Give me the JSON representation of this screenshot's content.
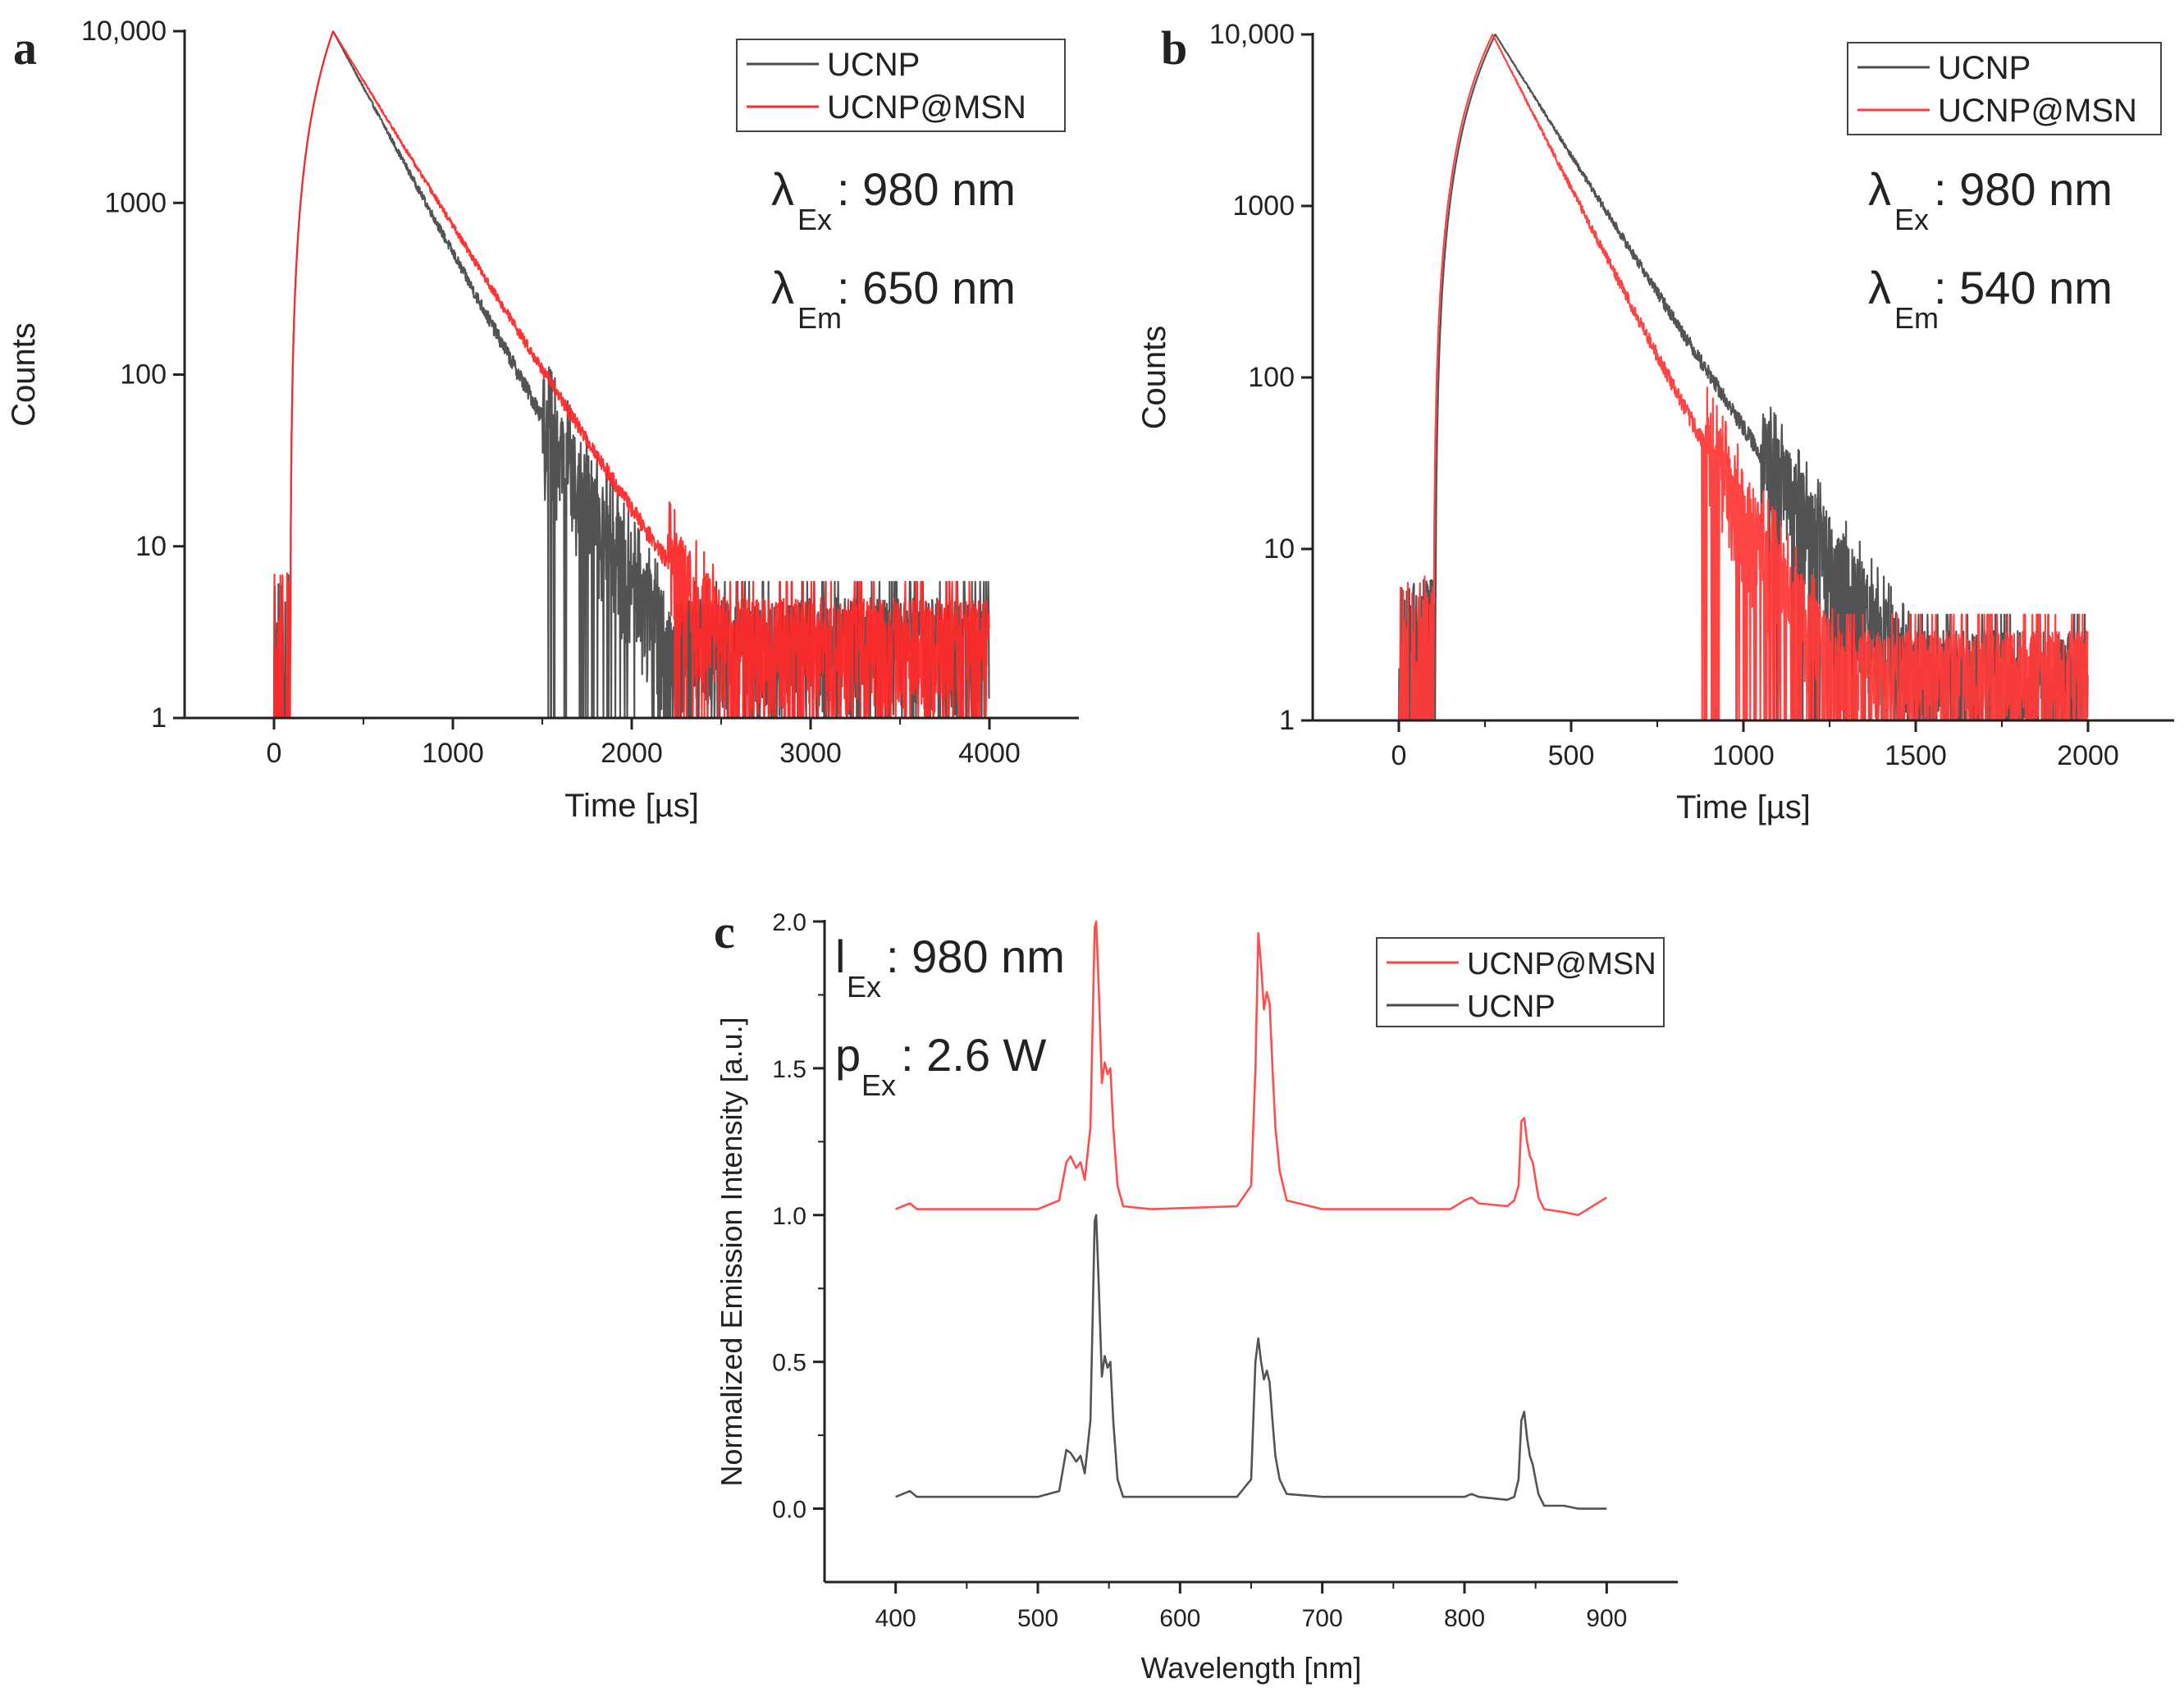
{
  "panels": {
    "a": "a",
    "b": "b",
    "c": "c"
  },
  "chart_data": [
    {
      "id": "a",
      "type": "line",
      "yscale": "log",
      "title": "",
      "xlabel": "Time [µs]",
      "ylabel": "Counts",
      "xlim": [
        -500,
        4500
      ],
      "ylim": [
        1,
        10000
      ],
      "xticks": [
        0,
        1000,
        2000,
        3000,
        4000
      ],
      "xtick_labels": [
        "0",
        "1000",
        "2000",
        "3000",
        "4000"
      ],
      "yticks": [
        1,
        10,
        100,
        1000,
        10000
      ],
      "ytick_labels": [
        "1",
        "10",
        "100",
        "1000",
        "10,000"
      ],
      "legend_position": "top-right",
      "annotations": [
        {
          "symbol": "λ",
          "sub": "Ex",
          "text": ": 980 nm"
        },
        {
          "symbol": "λ",
          "sub": "Em",
          "text": ": 650 nm"
        }
      ],
      "series": [
        {
          "name": "UCNP",
          "color": "#4a4a4a",
          "model": {
            "t_start": 90,
            "t_peak": 330,
            "peak": 10000,
            "tau1": 225,
            "tau2": 400,
            "frac2": 0.003,
            "noise_from": 1500,
            "floor": 3,
            "t_end": 4000
          }
        },
        {
          "name": "UCNP@MSN",
          "color": "#ff2a2a",
          "model": {
            "t_start": 90,
            "t_peak": 330,
            "peak": 10000,
            "tau1": 255,
            "tau2": 520,
            "frac2": 0.006,
            "noise_from": 2200,
            "floor": 3,
            "t_end": 4000
          }
        }
      ]
    },
    {
      "id": "b",
      "type": "line",
      "yscale": "log",
      "title": "",
      "xlabel": "Time [µs]",
      "ylabel": "Counts",
      "xlim": [
        -250,
        2250
      ],
      "ylim": [
        1,
        10000
      ],
      "xticks": [
        0,
        500,
        1000,
        1500,
        2000
      ],
      "xtick_labels": [
        "0",
        "500",
        "1000",
        "1500",
        "2000"
      ],
      "yticks": [
        1,
        10,
        100,
        1000,
        10000
      ],
      "ytick_labels": [
        "1",
        "10",
        "100",
        "1000",
        "10,000"
      ],
      "legend_position": "top-right",
      "annotations": [
        {
          "symbol": "λ",
          "sub": "Ex",
          "text": ": 980 nm"
        },
        {
          "symbol": "λ",
          "sub": "Em",
          "text": ": 540 nm"
        }
      ],
      "series": [
        {
          "name": "UCNP",
          "color": "#4a4a4a",
          "model": {
            "t_start": 105,
            "t_peak": 280,
            "peak": 10000,
            "tau1": 135,
            "tau2": 260,
            "frac2": 0.005,
            "noise_from": 1050,
            "floor": 2,
            "t_end": 2000
          }
        },
        {
          "name": "UCNP@MSN",
          "color": "#ff3a3a",
          "model": {
            "t_start": 100,
            "t_peak": 272,
            "peak": 10000,
            "tau1": 110,
            "tau2": 230,
            "frac2": 0.005,
            "noise_from": 880,
            "floor": 2,
            "t_end": 2000
          }
        }
      ]
    },
    {
      "id": "c",
      "type": "line",
      "title": "",
      "xlabel": "Wavelength [nm]",
      "ylabel": "Normalized Emission Intensity [a.u.]",
      "xlim": [
        350,
        950
      ],
      "ylim": [
        -0.25,
        2.0
      ],
      "xticks": [
        400,
        500,
        600,
        700,
        800,
        900
      ],
      "xtick_labels": [
        "400",
        "500",
        "600",
        "700",
        "800",
        "900"
      ],
      "yticks": [
        0.0,
        0.5,
        1.0,
        1.5,
        2.0
      ],
      "ytick_labels": [
        "0.0",
        "0.5",
        "1.0",
        "1.5",
        "2.0"
      ],
      "legend_position": "top-right",
      "annotations": [
        {
          "symbol": "l",
          "sub": "Ex",
          "text": ": 980 nm"
        },
        {
          "symbol": "p",
          "sub": "Ex",
          "text": ": 2.6 W"
        }
      ],
      "series": [
        {
          "name": "UCNP@MSN",
          "color": "#ff4444",
          "offset": 1.0,
          "x": [
            400,
            405,
            410,
            415,
            500,
            515,
            520,
            523,
            527,
            530,
            533,
            537,
            540,
            541,
            543,
            545,
            547,
            549,
            551,
            553,
            556,
            560,
            580,
            640,
            650,
            653,
            655,
            657,
            659,
            661,
            663,
            665,
            667,
            670,
            675,
            700,
            760,
            790,
            800,
            805,
            810,
            830,
            835,
            838,
            840,
            842,
            844,
            846,
            848,
            852,
            856,
            870,
            880,
            890,
            900
          ],
          "y": [
            0.02,
            0.03,
            0.04,
            0.02,
            0.02,
            0.05,
            0.18,
            0.2,
            0.16,
            0.18,
            0.12,
            0.3,
            0.98,
            1.0,
            0.75,
            0.45,
            0.52,
            0.48,
            0.5,
            0.3,
            0.1,
            0.03,
            0.02,
            0.03,
            0.1,
            0.5,
            0.96,
            0.85,
            0.7,
            0.76,
            0.72,
            0.5,
            0.3,
            0.15,
            0.05,
            0.02,
            0.02,
            0.02,
            0.05,
            0.06,
            0.04,
            0.03,
            0.05,
            0.1,
            0.32,
            0.33,
            0.25,
            0.2,
            0.18,
            0.06,
            0.02,
            0.01,
            0.0,
            0.03,
            0.06
          ]
        },
        {
          "name": "UCNP",
          "color": "#4a4a4a",
          "offset": 0.0,
          "x": [
            400,
            405,
            410,
            415,
            500,
            515,
            520,
            523,
            527,
            530,
            533,
            537,
            540,
            541,
            543,
            545,
            547,
            549,
            551,
            553,
            556,
            560,
            580,
            640,
            650,
            653,
            655,
            657,
            659,
            661,
            663,
            665,
            667,
            670,
            675,
            700,
            760,
            790,
            800,
            805,
            810,
            830,
            835,
            838,
            840,
            842,
            844,
            846,
            848,
            852,
            856,
            870,
            880,
            890,
            900
          ],
          "y": [
            0.04,
            0.05,
            0.06,
            0.04,
            0.04,
            0.06,
            0.2,
            0.19,
            0.16,
            0.18,
            0.12,
            0.3,
            0.98,
            1.0,
            0.74,
            0.45,
            0.52,
            0.48,
            0.5,
            0.3,
            0.1,
            0.04,
            0.04,
            0.04,
            0.1,
            0.5,
            0.58,
            0.5,
            0.44,
            0.47,
            0.43,
            0.3,
            0.18,
            0.1,
            0.05,
            0.04,
            0.04,
            0.04,
            0.04,
            0.05,
            0.04,
            0.03,
            0.04,
            0.1,
            0.3,
            0.33,
            0.24,
            0.18,
            0.15,
            0.05,
            0.01,
            0.01,
            0.0,
            0.0,
            0.0
          ]
        }
      ]
    }
  ]
}
